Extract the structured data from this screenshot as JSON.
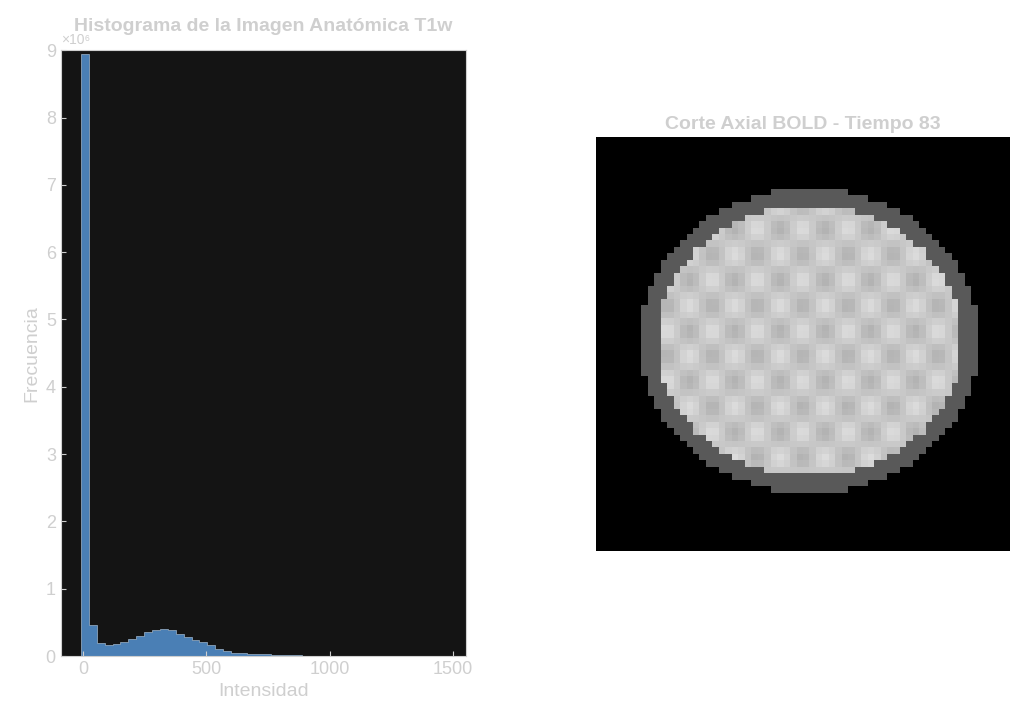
{
  "chart_data": [
    {
      "type": "histogram",
      "title": "Histograma de la Imagen Anatómica T1w",
      "x_label": "Intensidad",
      "y_label": "Frecuencia",
      "annotations": [
        "×10⁶"
      ],
      "bins": [
        -8,
        24,
        56,
        88,
        120,
        152,
        184,
        216,
        248,
        280,
        312,
        344,
        376,
        408,
        440,
        472,
        504,
        536,
        568,
        600,
        632,
        664,
        696,
        728,
        760,
        792,
        824,
        856,
        888,
        920,
        952,
        984,
        1016,
        1048,
        1080,
        1112,
        1144
      ],
      "values": [
        8.95,
        0.46,
        0.2,
        0.17,
        0.18,
        0.21,
        0.25,
        0.3,
        0.35,
        0.39,
        0.4,
        0.38,
        0.33,
        0.28,
        0.24,
        0.21,
        0.17,
        0.11,
        0.07,
        0.05,
        0.04,
        0.035,
        0.03,
        0.025,
        0.02,
        0.015,
        0.012,
        0.01,
        0.008,
        0.007,
        0.006,
        0.005,
        0.004,
        0.003,
        0.003,
        0.002
      ],
      "color": "#4a7fb5",
      "xlim": [
        -90,
        1550
      ],
      "xticks": [
        0,
        500,
        1000,
        1500
      ],
      "ylim": [
        0,
        9
      ],
      "yticks": [
        0,
        1,
        2,
        3,
        4,
        5,
        6,
        7,
        8,
        9
      ],
      "grid": false
    },
    {
      "type": "image",
      "title": "Corte Axial BOLD - Tiempo 83",
      "tick_labels": false
    }
  ]
}
